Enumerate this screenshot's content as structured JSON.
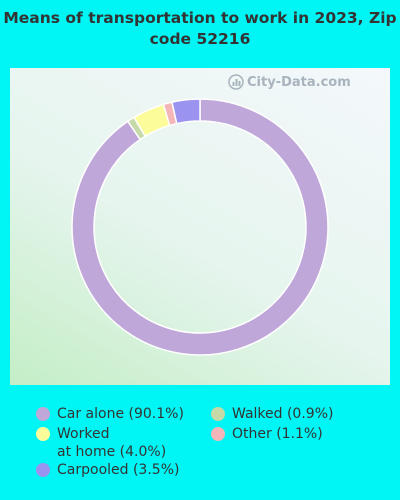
{
  "chart_data": {
    "type": "pie",
    "title": "Means of transportation to work in 2023, Zip code 52216",
    "categories": [
      "Car alone",
      "Walked",
      "Worked at home",
      "Other",
      "Carpooled"
    ],
    "values": [
      90.1,
      0.9,
      4.0,
      1.1,
      3.5
    ],
    "colors": [
      "#bfa8d9",
      "#c6d9a8",
      "#fcfc9a",
      "#f4b6b8",
      "#9a93f0"
    ],
    "legend_labels": [
      "Car alone (90.1%)",
      "Walked (0.9%)",
      "Worked\nat home (4.0%)",
      "Other (1.1%)",
      "Carpooled (3.5%)"
    ],
    "legend_placement": "bottom"
  },
  "watermark": "City-Data.com"
}
